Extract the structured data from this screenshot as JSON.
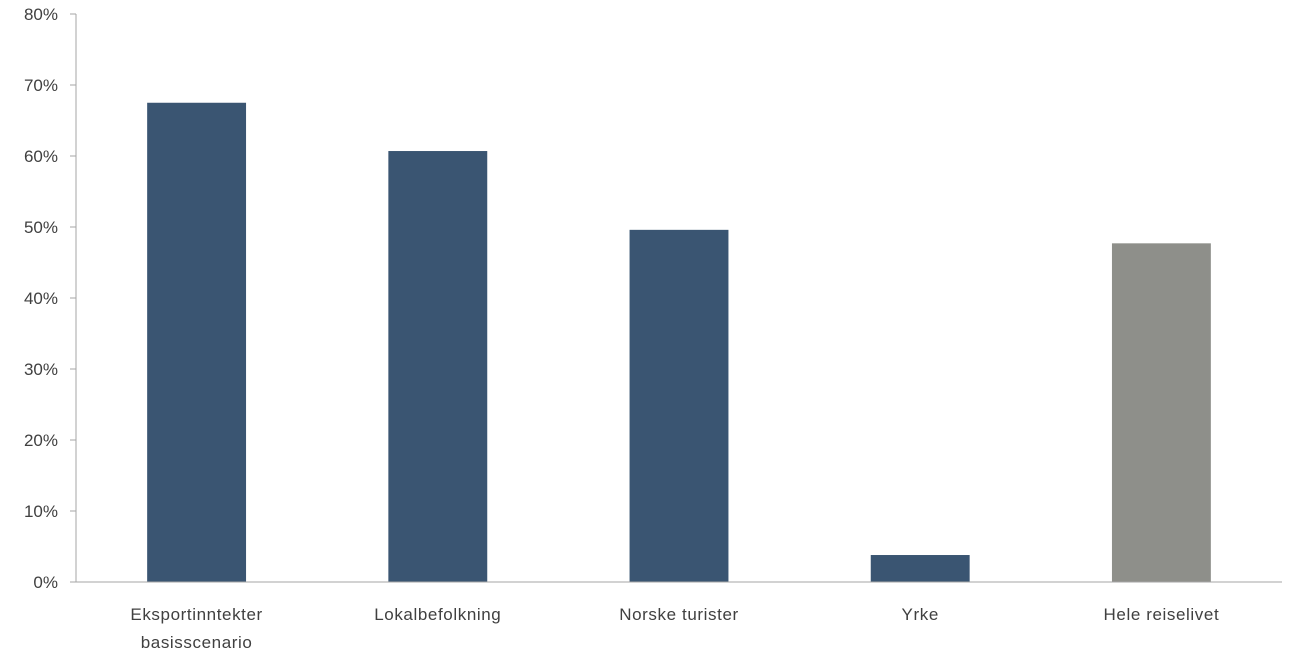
{
  "chart_data": {
    "type": "bar",
    "title": "",
    "xlabel": "",
    "ylabel": "",
    "categories": [
      [
        "Eksportinntekter",
        "basisscenario"
      ],
      [
        "Lokalbefolkning"
      ],
      [
        "Norske turister"
      ],
      [
        "Yrke"
      ],
      [
        "Hele reiselivet"
      ]
    ],
    "values": [
      0.675,
      0.607,
      0.496,
      0.038,
      0.477
    ],
    "bar_colors": [
      "#3a5572",
      "#3a5572",
      "#3a5572",
      "#3a5572",
      "#8e8f8a"
    ],
    "ylim": [
      0,
      0.8
    ],
    "yticks": [
      0,
      0.1,
      0.2,
      0.3,
      0.4,
      0.5,
      0.6,
      0.7,
      0.8
    ],
    "ytick_labels": [
      "0%",
      "10%",
      "20%",
      "30%",
      "40%",
      "50%",
      "60%",
      "70%",
      "80%"
    ],
    "grid": false,
    "legend": "none"
  }
}
